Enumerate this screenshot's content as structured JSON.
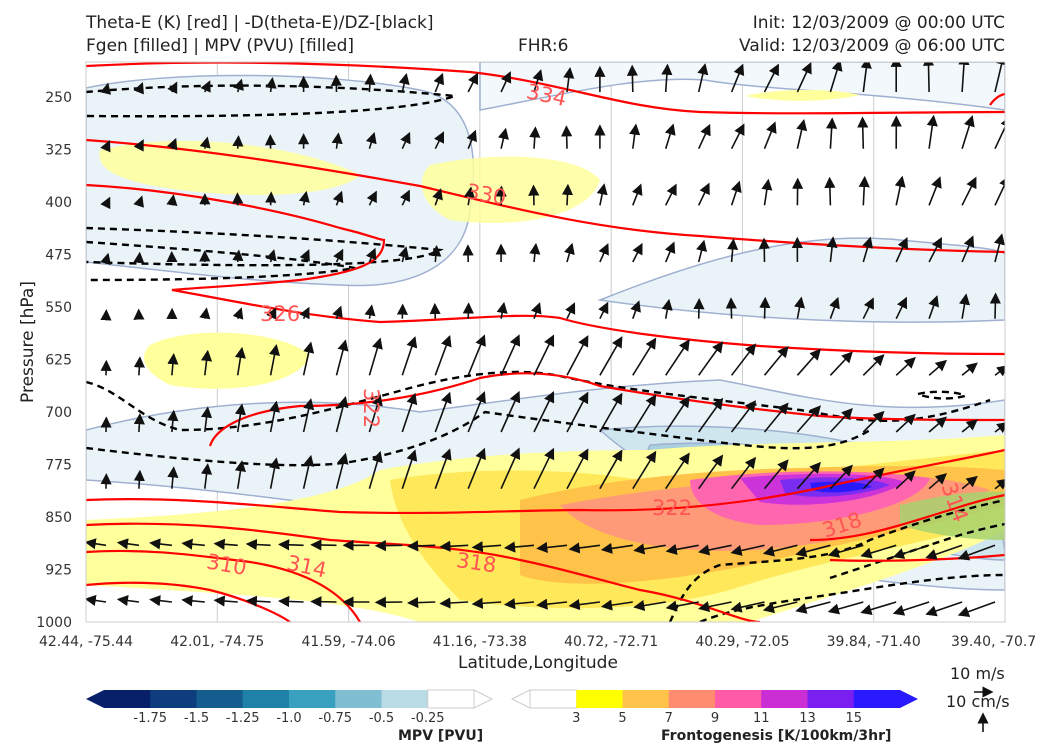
{
  "header": {
    "line1_left": "Theta-E (K) [red] | -D(theta-E)/DZ-[black]",
    "line2_left": "Fgen [filled] | MPV (PVU) [filled]",
    "fhr": "FHR:6",
    "init": "Init: 12/03/2009 @ 00:00 UTC",
    "valid": "Valid: 12/03/2009 @ 06:00 UTC"
  },
  "colors": {
    "theta_e": "#ff0000",
    "stability": "#000000",
    "mpv_outline": "#9fb0d0",
    "mpv_fill": [
      "#08206a",
      "#0d3d7c",
      "#155d8f",
      "#1f80a8",
      "#3aa0c0",
      "#7fbed3",
      "#b9dbe6",
      "#ffffff"
    ],
    "fgen_fill": [
      "#ffffff",
      "#ffff00",
      "#ffc34a",
      "#ff8c6e",
      "#ff5aa8",
      "#cc2ed6",
      "#7a1ff0",
      "#2a1aff"
    ]
  },
  "chart_data": {
    "type": "cross-section",
    "xlabel": "Latitude,Longitude",
    "ylabel": "Pressure [hPa]",
    "x_ticks": [
      "42.44, -75.44",
      "42.01, -74.75",
      "41.59, -74.06",
      "41.16, -73.38",
      "40.72, -72.71",
      "40.29, -72.05",
      "39.84, -71.40",
      "39.40, -70.7"
    ],
    "y_ticks": [
      "250",
      "325",
      "400",
      "475",
      "550",
      "625",
      "700",
      "775",
      "850",
      "925",
      "1000"
    ],
    "ylim": [
      1000,
      200
    ],
    "theta_e_contour_labels": [
      {
        "label": "334",
        "x": 3.3,
        "y": 260
      },
      {
        "label": "330",
        "x": 3.05,
        "y": 385
      },
      {
        "label": "326",
        "x": 1.5,
        "y": 560
      },
      {
        "label": "322",
        "x": 2.05,
        "y": 700
      },
      {
        "label": "322",
        "x": 4.45,
        "y": 843
      },
      {
        "label": "318",
        "x": 6.1,
        "y": 855
      },
      {
        "label": "318",
        "x": 3.0,
        "y": 920
      },
      {
        "label": "314",
        "x": 1.7,
        "y": 925
      },
      {
        "label": "310",
        "x": 1.1,
        "y": 920
      },
      {
        "label": "314",
        "x": 6.55,
        "y": 830
      }
    ],
    "colorbars": [
      {
        "name": "MPV [PVU]",
        "ticks": [
          "-1.75",
          "-1.5",
          "-1.25",
          "-1.0",
          "-0.75",
          "-0.5",
          "-0.25"
        ]
      },
      {
        "name": "Frontogenesis [K/100km/3hr]",
        "ticks": [
          "3",
          "5",
          "7",
          "9",
          "11",
          "13",
          "15"
        ]
      }
    ],
    "vector_reference": [
      "10 m/s",
      "10 cm/s"
    ],
    "grid": true
  }
}
